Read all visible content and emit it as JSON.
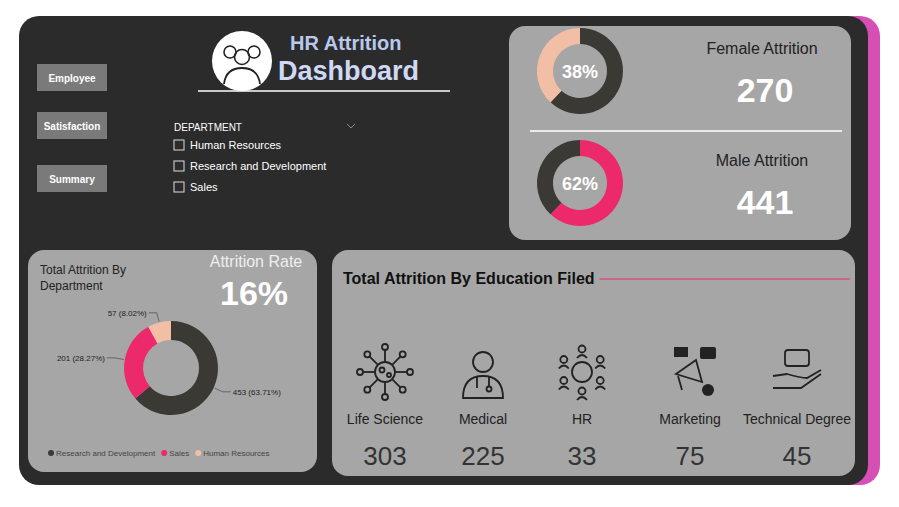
{
  "header": {
    "title": "HR Attrition",
    "subtitle": "Dashboard"
  },
  "nav": {
    "buttons": [
      "Employee",
      "Satisfaction",
      "Summary"
    ]
  },
  "filter": {
    "title": "DEPARTMENT",
    "options": [
      "Human Resources",
      "Research and Development",
      "Sales"
    ]
  },
  "gender": [
    {
      "label": "Female Attrition",
      "count": 270
    },
    {
      "label": "Male Attrition",
      "count": 441
    }
  ],
  "attrition_rate": {
    "label": "Attrition Rate",
    "value": "16%"
  },
  "chart_data": [
    {
      "type": "donut",
      "values": [
        62,
        38
      ],
      "value_labels": [
        null,
        "38%"
      ],
      "colors": [
        "#3a3934",
        "#f2bfa6"
      ]
    },
    {
      "type": "donut",
      "values": [
        62,
        38
      ],
      "value_labels": [
        "62%",
        null
      ],
      "colors": [
        "#ec2a6b",
        "#3a3934"
      ]
    },
    {
      "type": "donut",
      "title": "Total Attrition By Department",
      "categories": [
        "Research and Development",
        "Sales",
        "Human Resources"
      ],
      "values": [
        453,
        201,
        57
      ],
      "value_labels": [
        "453 (63.71%)",
        "201 (28.27%)",
        "57 (8.02%)"
      ],
      "colors": [
        "#3a3934",
        "#ec2a6b",
        "#f2bfa6"
      ],
      "data_labels": true,
      "legend": "bottom"
    }
  ],
  "education": {
    "title": "Total Attrition By Education Filed",
    "items": [
      {
        "label": "Life Science",
        "value": 303
      },
      {
        "label": "Medical",
        "value": 225
      },
      {
        "label": "HR",
        "value": 33
      },
      {
        "label": "Marketing",
        "value": 75
      },
      {
        "label": "Technical Degree",
        "value": 45
      }
    ]
  }
}
